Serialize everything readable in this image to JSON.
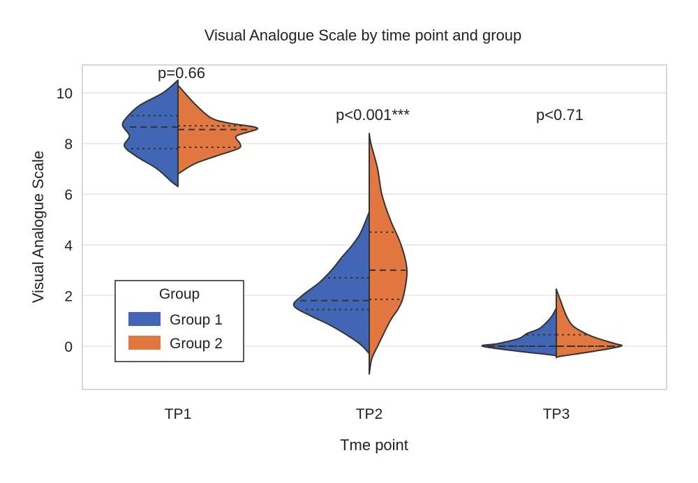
{
  "chart_data": {
    "type": "violin",
    "title": "Visual Analogue Scale by time point and group",
    "xlabel": "Tme point",
    "ylabel": "Visual Analogue Scale",
    "ylim": [
      -1.7,
      11.0
    ],
    "yticks": [
      0,
      2,
      4,
      6,
      8,
      10
    ],
    "categories": [
      "TP1",
      "TP2",
      "TP3"
    ],
    "annotations": [
      "p=0.66",
      "p<0.001***",
      "p<0.71"
    ],
    "grid": true,
    "legend": {
      "title": "Group",
      "placement": "lower-left",
      "entries": [
        "Group 1",
        "Group 2"
      ]
    },
    "colors": {
      "Group 1": "#4167b4",
      "Group 2": "#e2783f"
    },
    "violins": [
      {
        "category": "TP1",
        "group": "Group 1",
        "quartiles": [
          7.8,
          8.65,
          9.1
        ],
        "density": [
          [
            6.3,
            0
          ],
          [
            6.5,
            0.08
          ],
          [
            7,
            0.25
          ],
          [
            7.5,
            0.5
          ],
          [
            7.9,
            0.64
          ],
          [
            8.3,
            0.58
          ],
          [
            8.7,
            0.66
          ],
          [
            9,
            0.62
          ],
          [
            9.5,
            0.46
          ],
          [
            10,
            0.18
          ],
          [
            10.5,
            0
          ]
        ]
      },
      {
        "category": "TP1",
        "group": "Group 2",
        "quartiles": [
          7.85,
          8.55,
          8.7
        ],
        "density": [
          [
            6.8,
            0
          ],
          [
            7.2,
            0.2
          ],
          [
            7.5,
            0.45
          ],
          [
            7.8,
            0.72
          ],
          [
            8,
            0.74
          ],
          [
            8.3,
            0.7
          ],
          [
            8.6,
            0.95
          ],
          [
            8.8,
            0.62
          ],
          [
            9,
            0.4
          ],
          [
            9.5,
            0.22
          ],
          [
            10,
            0.08
          ],
          [
            10.3,
            0
          ]
        ]
      },
      {
        "category": "TP2",
        "group": "Group 1",
        "quartiles": [
          1.45,
          1.8,
          2.7
        ],
        "density": [
          [
            -0.3,
            0
          ],
          [
            0,
            0.08
          ],
          [
            0.3,
            0.2
          ],
          [
            0.8,
            0.45
          ],
          [
            1.2,
            0.7
          ],
          [
            1.6,
            0.9
          ],
          [
            2,
            0.8
          ],
          [
            2.5,
            0.6
          ],
          [
            3,
            0.45
          ],
          [
            3.5,
            0.33
          ],
          [
            4,
            0.2
          ],
          [
            4.5,
            0.1
          ],
          [
            5.3,
            0
          ]
        ]
      },
      {
        "category": "TP2",
        "group": "Group 2",
        "quartiles": [
          1.85,
          3.0,
          4.5
        ],
        "density": [
          [
            -1.1,
            0
          ],
          [
            -0.5,
            0.03
          ],
          [
            0,
            0.1
          ],
          [
            1,
            0.25
          ],
          [
            1.5,
            0.35
          ],
          [
            2,
            0.41
          ],
          [
            3,
            0.45
          ],
          [
            4,
            0.38
          ],
          [
            5,
            0.25
          ],
          [
            6,
            0.15
          ],
          [
            7,
            0.1
          ],
          [
            8,
            0.02
          ],
          [
            8.4,
            0
          ]
        ]
      },
      {
        "category": "TP3",
        "group": "Group 1",
        "quartiles": [
          0,
          0,
          0.45
        ],
        "density": [
          [
            -0.4,
            0
          ],
          [
            -0.35,
            0.05
          ],
          [
            -0.2,
            0.45
          ],
          [
            0,
            0.88
          ],
          [
            0.1,
            0.7
          ],
          [
            0.3,
            0.45
          ],
          [
            0.5,
            0.35
          ],
          [
            0.7,
            0.2
          ],
          [
            1,
            0.1
          ],
          [
            1.2,
            0.05
          ],
          [
            1.5,
            0
          ]
        ]
      },
      {
        "category": "TP3",
        "group": "Group 2",
        "quartiles": [
          0,
          0,
          0.45
        ],
        "density": [
          [
            -0.45,
            0
          ],
          [
            -0.4,
            0.05
          ],
          [
            -0.2,
            0.45
          ],
          [
            0,
            0.77
          ],
          [
            0.1,
            0.7
          ],
          [
            0.3,
            0.5
          ],
          [
            0.5,
            0.35
          ],
          [
            0.8,
            0.2
          ],
          [
            1.2,
            0.12
          ],
          [
            1.8,
            0.05
          ],
          [
            2.25,
            0
          ]
        ]
      }
    ]
  }
}
